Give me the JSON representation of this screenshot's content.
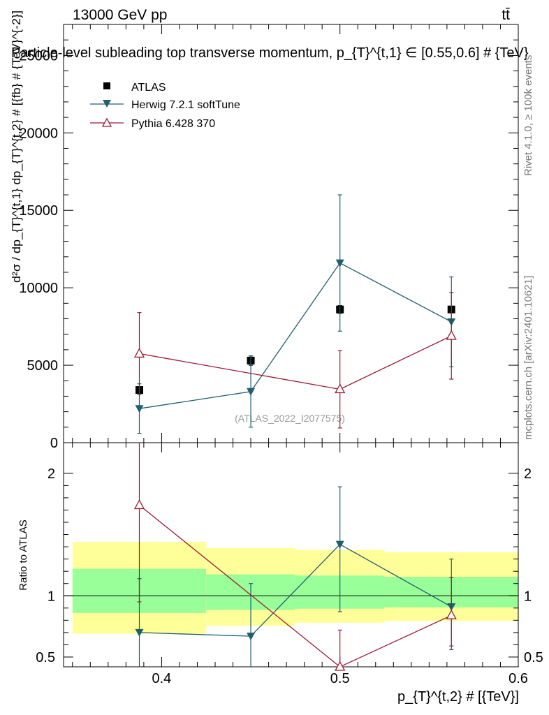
{
  "header": {
    "energy_label": "13000 GeV pp",
    "process_label": "tt̄"
  },
  "side_labels": {
    "rivet": "Rivet 4.1.0, ≥ 100k events",
    "mcplots": "mcplots.cern.ch [arXiv:2401.10621]"
  },
  "chart_data": [
    {
      "type": "scatter",
      "panel": "main",
      "title": "Particle-level subleading top transverse momentum, p_{T}^{t,1} ∈ [0.55,0.6] # {TeV}",
      "ylabel": "d²σ / dp_{T}^{t,1} dp_{T}^{t,2} # [{fb} # {TeV}^{-2}]",
      "watermark": "(ATLAS_2022_I2077575)",
      "xlim": [
        0.345,
        0.6
      ],
      "ylim": [
        0,
        27000
      ],
      "yticks": [
        0,
        5000,
        10000,
        15000,
        20000,
        25000
      ],
      "ytick_labels": [
        "0",
        "5000",
        "10000",
        "15000",
        "20000",
        "25000"
      ],
      "legend": [
        {
          "label": "ATLAS",
          "marker": "square",
          "color": "#000000"
        },
        {
          "label": "Herwig 7.2.1 softTune",
          "marker": "triangle-down",
          "color": "#1f5f6e"
        },
        {
          "label": "Pythia 6.428 370",
          "marker": "triangle-up-open",
          "color": "#9b1b30"
        }
      ],
      "series": [
        {
          "name": "ATLAS",
          "x": [
            0.3875,
            0.45,
            0.5,
            0.5625
          ],
          "y": [
            3400,
            5300,
            8600,
            8600
          ],
          "err": [
            200,
            300,
            250,
            200
          ]
        },
        {
          "name": "Herwig 7.2.1 softTune",
          "x": [
            0.3875,
            0.45,
            0.5,
            0.5625
          ],
          "y": [
            2200,
            3300,
            11600,
            7800
          ],
          "err": [
            1600,
            2300,
            4400,
            2900
          ]
        },
        {
          "name": "Pythia 6.428 370",
          "x": [
            0.3875,
            0.45,
            0.5,
            0.5625
          ],
          "y": [
            5750,
            null,
            3450,
            6900
          ],
          "err": [
            2650,
            null,
            2500,
            2800
          ]
        }
      ]
    },
    {
      "type": "line",
      "panel": "ratio",
      "ylabel": "Ratio to ATLAS",
      "xlabel": "p_{T}^{t,2} # [{TeV}]",
      "xlim": [
        0.345,
        0.6
      ],
      "ylim": [
        0.42,
        2.25
      ],
      "yticks": [
        0.5,
        1,
        2
      ],
      "ytick_labels": [
        "0.5",
        "1",
        "2"
      ],
      "xticks": [
        0.4,
        0.5,
        0.6
      ],
      "xtick_labels": [
        "0.4",
        "0.5",
        "0.6"
      ],
      "bands": [
        {
          "x": [
            0.35,
            0.425
          ],
          "inner": [
            0.86,
            1.22
          ],
          "outer": [
            0.69,
            1.44
          ]
        },
        {
          "x": [
            0.425,
            0.475
          ],
          "inner": [
            0.885,
            1.175
          ],
          "outer": [
            0.755,
            1.39
          ]
        },
        {
          "x": [
            0.475,
            0.525
          ],
          "inner": [
            0.895,
            1.165
          ],
          "outer": [
            0.78,
            1.375
          ]
        },
        {
          "x": [
            0.525,
            0.6
          ],
          "inner": [
            0.905,
            1.155
          ],
          "outer": [
            0.795,
            1.355
          ]
        }
      ],
      "series": [
        {
          "name": "Herwig 7.2.1 softTune",
          "x": [
            0.3875,
            0.45,
            0.5,
            0.5625
          ],
          "y": [
            0.7,
            0.67,
            1.42,
            0.91
          ],
          "lo": [
            0.42,
            0.42,
            0.87,
            0.56
          ],
          "hi": [
            1.14,
            1.1,
            1.89,
            1.3
          ]
        },
        {
          "name": "Pythia 6.428 370",
          "x": [
            0.3875,
            0.5,
            0.5625
          ],
          "y": [
            1.74,
            0.41,
            0.84
          ],
          "lo": [
            0.95,
            0.42,
            0.59
          ],
          "hi": [
            2.25,
            0.72,
            1.15
          ]
        }
      ]
    }
  ]
}
